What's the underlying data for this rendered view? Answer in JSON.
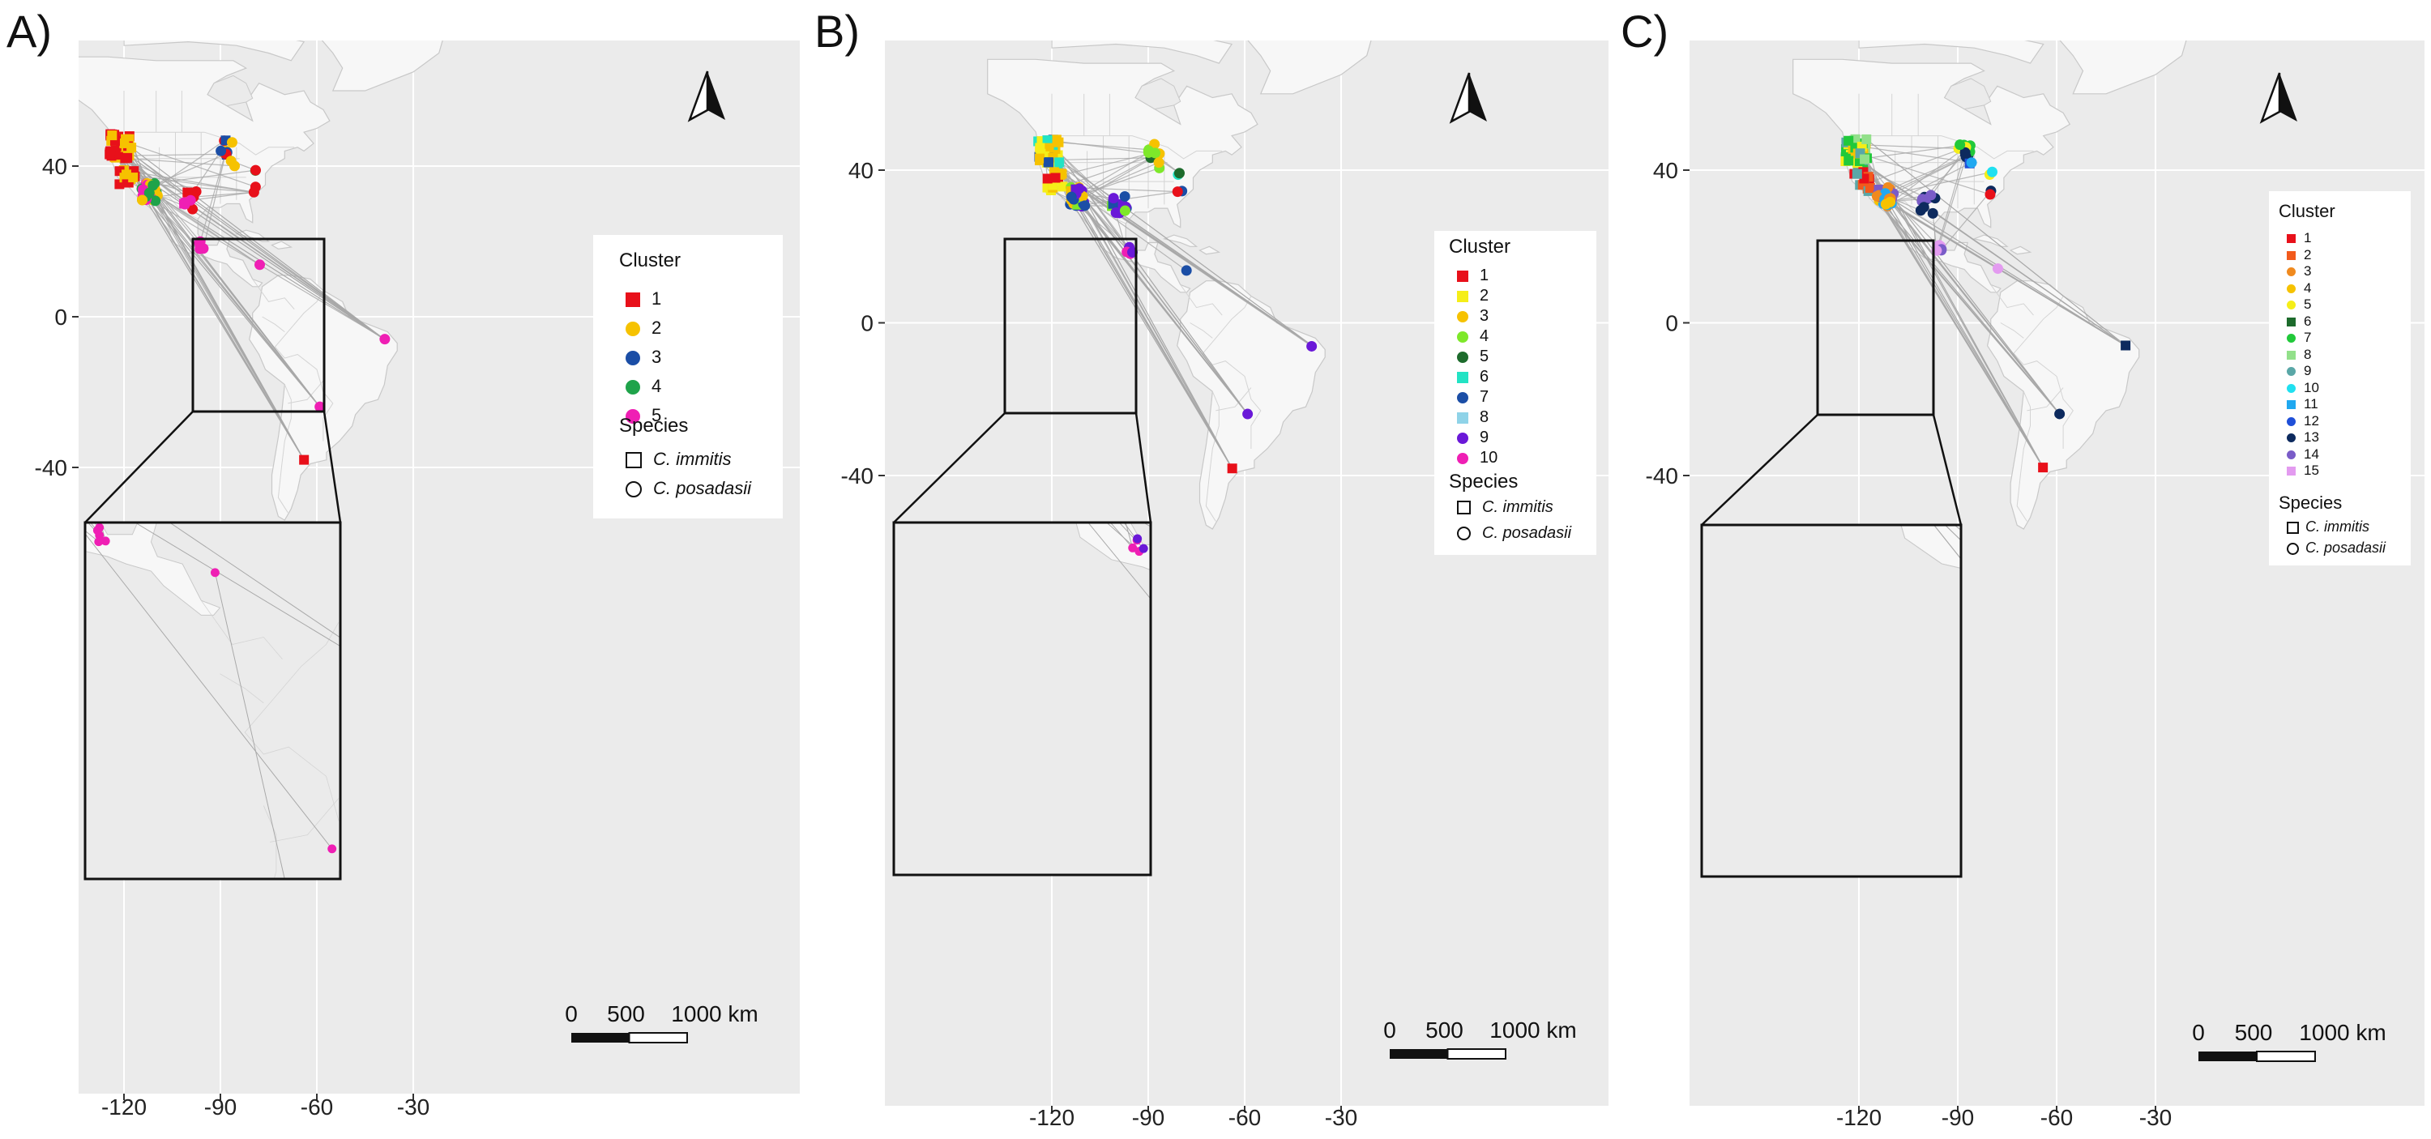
{
  "panels": [
    {
      "letter": "A)",
      "legend": {
        "cluster_title": "Cluster",
        "clusters": [
          {
            "label": "1",
            "color": "#e8101a"
          },
          {
            "label": "2",
            "color": "#f6c200"
          },
          {
            "label": "3",
            "color": "#1b4ea6"
          },
          {
            "label": "4",
            "color": "#1fa34a"
          },
          {
            "label": "5",
            "color": "#ef1fb4"
          }
        ],
        "species_title": "Species",
        "species": [
          "C. immitis",
          "C. posadasii"
        ]
      },
      "x_ticks": [
        "-120",
        "-90",
        "-60",
        "-30"
      ],
      "y_ticks": [
        "40",
        "0",
        "-40"
      ],
      "scalebar": [
        "0",
        "500",
        "1000 km"
      ]
    },
    {
      "letter": "B)",
      "legend": {
        "cluster_title": "Cluster",
        "clusters": [
          {
            "label": "1",
            "color": "#e8101a"
          },
          {
            "label": "2",
            "color": "#f5ee18"
          },
          {
            "label": "3",
            "color": "#f6c200"
          },
          {
            "label": "4",
            "color": "#7ee82a"
          },
          {
            "label": "5",
            "color": "#1d6b2c"
          },
          {
            "label": "6",
            "color": "#22e3c4"
          },
          {
            "label": "7",
            "color": "#1b4ea6"
          },
          {
            "label": "8",
            "color": "#8fd3e8"
          },
          {
            "label": "9",
            "color": "#6a18d8"
          },
          {
            "label": "10",
            "color": "#ef1fb4"
          }
        ],
        "species_title": "Species",
        "species": [
          "C. immitis",
          "C. posadasii"
        ]
      },
      "x_ticks": [
        "-120",
        "-90",
        "-60",
        "-30"
      ],
      "y_ticks": [
        "40",
        "0",
        "-40"
      ],
      "scalebar": [
        "0",
        "500",
        "1000 km"
      ]
    },
    {
      "letter": "C)",
      "legend": {
        "cluster_title": "Cluster",
        "clusters": [
          {
            "label": "1",
            "color": "#e8101a"
          },
          {
            "label": "2",
            "color": "#f25a1c"
          },
          {
            "label": "3",
            "color": "#f08a1e"
          },
          {
            "label": "4",
            "color": "#f6c200"
          },
          {
            "label": "5",
            "color": "#f5ee18"
          },
          {
            "label": "6",
            "color": "#1d6b2c"
          },
          {
            "label": "7",
            "color": "#21c93a"
          },
          {
            "label": "8",
            "color": "#92e08a"
          },
          {
            "label": "9",
            "color": "#5aa7a7"
          },
          {
            "label": "10",
            "color": "#20e0f0"
          },
          {
            "label": "11",
            "color": "#20a8f0"
          },
          {
            "label": "12",
            "color": "#1f4fd8"
          },
          {
            "label": "13",
            "color": "#0d2a5e"
          },
          {
            "label": "14",
            "color": "#7a5cc8"
          },
          {
            "label": "15",
            "color": "#e39bf0"
          }
        ],
        "species_title": "Species",
        "species": [
          "C. immitis",
          "C. posadasii"
        ]
      },
      "x_ticks": [
        "-120",
        "-90",
        "-60",
        "-30"
      ],
      "y_ticks": [
        "40",
        "0",
        "-40"
      ],
      "scalebar": [
        "0",
        "500",
        "1000 km"
      ]
    }
  ]
}
